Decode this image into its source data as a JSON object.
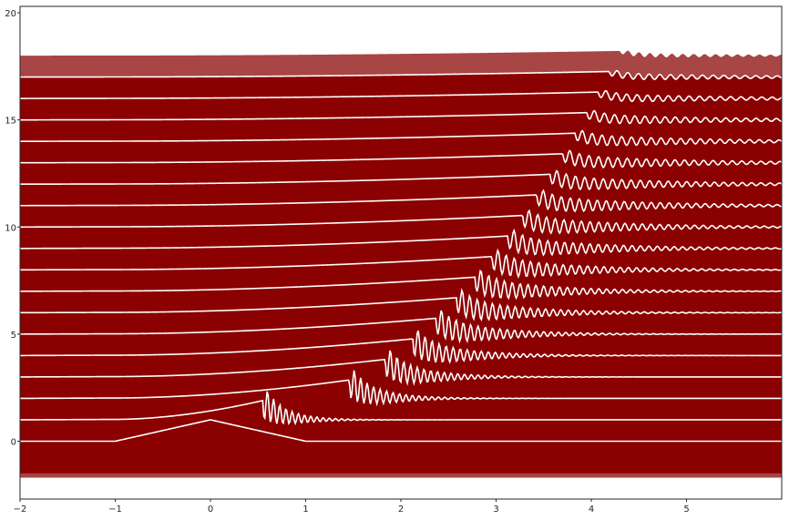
{
  "chart_data": {
    "type": "line",
    "title": "",
    "xlabel": "",
    "ylabel": "",
    "xlim": [
      -2,
      6
    ],
    "ylim": [
      -2.7,
      20.3
    ],
    "grid": false,
    "legend": "none",
    "x_ticks": [
      {
        "value": -2,
        "label": "−2"
      },
      {
        "value": -1,
        "label": "−1"
      },
      {
        "value": 0,
        "label": "0"
      },
      {
        "value": 1,
        "label": "1"
      },
      {
        "value": 2,
        "label": "2"
      },
      {
        "value": 3,
        "label": "3"
      },
      {
        "value": 4,
        "label": "4"
      },
      {
        "value": 5,
        "label": "5"
      }
    ],
    "y_ticks": [
      {
        "value": 0,
        "label": "0"
      },
      {
        "value": 5,
        "label": "5"
      },
      {
        "value": 10,
        "label": "10"
      },
      {
        "value": 15,
        "label": "15"
      },
      {
        "value": 20,
        "label": "20"
      }
    ],
    "profile_count": 19,
    "profile_spacing": 1,
    "initial_profile": {
      "x": [
        -2,
        -1,
        0,
        1,
        6
      ],
      "y": [
        0,
        0,
        1,
        0,
        0
      ]
    },
    "front": {
      "start_x": 0.55,
      "end_x": 4.3,
      "height_start": 0.9,
      "height_end": 0.22,
      "oscillation_amplitude_start": 0.85,
      "oscillation_amplitude_end": 0.12
    },
    "colors": {
      "fill": "#8b0000",
      "fill_upper": "#a84545",
      "line": "#ffffff",
      "axes": "#262626",
      "background": "#ffffff"
    }
  }
}
